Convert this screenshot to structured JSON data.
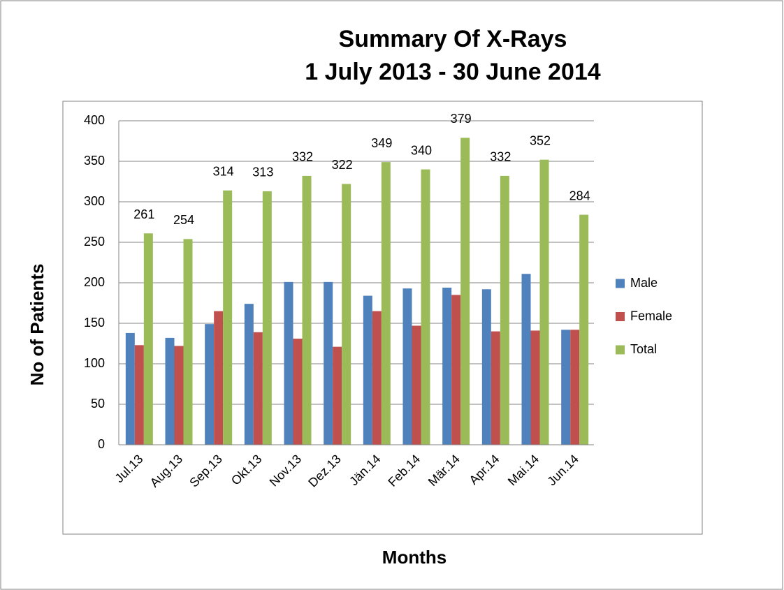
{
  "chart_data": {
    "type": "bar",
    "title": "Summary Of X-Rays",
    "subtitle": "1 July 2013 - 30 June 2014",
    "x_label": "Months",
    "y_label": "No of Patients",
    "categories": [
      "Jul.13",
      "Aug.13",
      "Sep.13",
      "Okt.13",
      "Nov.13",
      "Dez.13",
      "Jän.14",
      "Feb.14",
      "Mär.14",
      "Apr.14",
      "Mai.14",
      "Jun.14"
    ],
    "series": [
      {
        "name": "Male",
        "color": "#4f81bd",
        "values": [
          138,
          132,
          149,
          174,
          201,
          201,
          184,
          193,
          194,
          192,
          211,
          142
        ]
      },
      {
        "name": "Female",
        "color": "#c0504d",
        "values": [
          123,
          122,
          165,
          139,
          131,
          121,
          165,
          147,
          185,
          140,
          141,
          142
        ]
      },
      {
        "name": "Total",
        "color": "#9bbb59",
        "values": [
          261,
          254,
          314,
          313,
          332,
          322,
          349,
          340,
          379,
          332,
          352,
          284
        ],
        "data_labels": true
      }
    ],
    "ylim": [
      0,
      400
    ],
    "yticks": [
      0,
      50,
      100,
      150,
      200,
      250,
      300,
      350,
      400
    ],
    "grid": true,
    "legend": "right"
  }
}
